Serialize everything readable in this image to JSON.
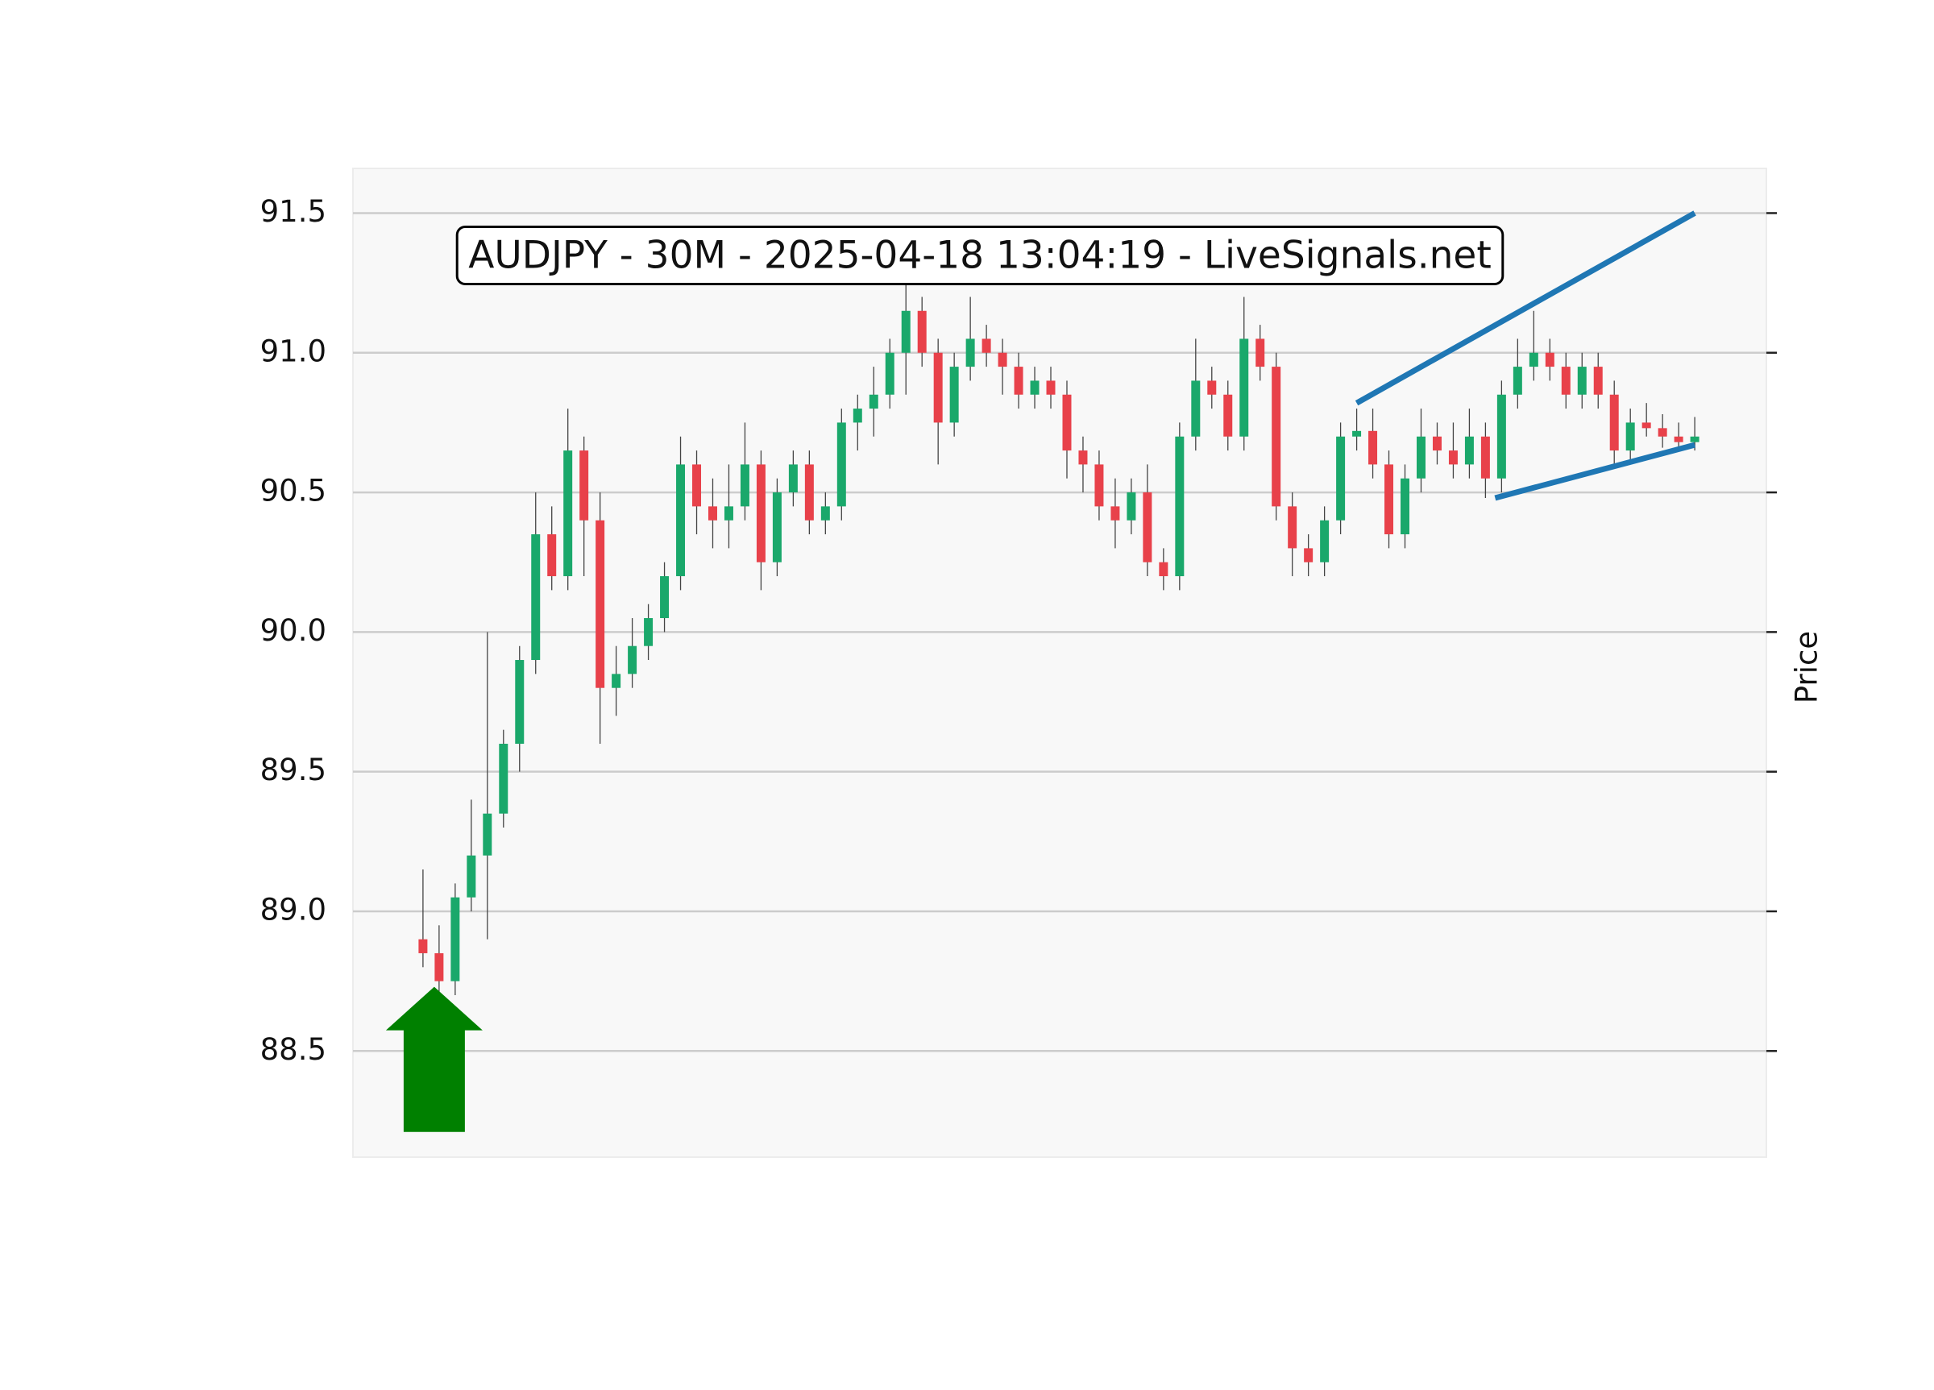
{
  "chart_data": {
    "type": "candlestick",
    "title": "AUDJPY - 30M - 2025-04-18 13:04:19 - LiveSignals.net",
    "ylabel": "Price",
    "ylim": [
      88.12,
      91.66
    ],
    "xlim": [
      -4.35,
      83.45
    ],
    "yticks": [
      88.5,
      {
        "value": 89,
        "label": "89.0"
      },
      89.5,
      {
        "value": 90,
        "label": "90.0"
      },
      90.5,
      {
        "value": 91,
        "label": "91.0"
      },
      91.5
    ],
    "grid": true,
    "up_color": "#1aa86b",
    "down_color": "#e8414a",
    "open": [
      88.9,
      88.85,
      88.75,
      89.05,
      89.2,
      89.35,
      89.6,
      89.9,
      90.35,
      90.2,
      90.65,
      90.4,
      89.8,
      89.85,
      89.95,
      90.05,
      90.2,
      90.6,
      90.45,
      90.4,
      90.45,
      90.6,
      90.25,
      90.5,
      90.6,
      90.4,
      90.45,
      90.75,
      90.8,
      90.85,
      91.0,
      91.15,
      91.0,
      90.75,
      90.95,
      91.05,
      91.0,
      90.95,
      90.85,
      90.9,
      90.85,
      90.65,
      90.6,
      90.45,
      90.4,
      90.5,
      90.25,
      90.2,
      90.7,
      90.9,
      90.85,
      90.7,
      91.05,
      90.95,
      90.45,
      90.3,
      90.25,
      90.4,
      90.7,
      90.72,
      90.6,
      90.35,
      90.55,
      90.7,
      90.65,
      90.6,
      90.7,
      90.55,
      90.85,
      90.95,
      91.0,
      90.95,
      90.85,
      90.95,
      90.85,
      90.65,
      90.75,
      90.73,
      90.7,
      90.68
    ],
    "high": [
      89.15,
      88.95,
      89.1,
      89.4,
      90.0,
      89.65,
      89.95,
      90.5,
      90.45,
      90.8,
      90.7,
      90.5,
      89.95,
      90.05,
      90.1,
      90.25,
      90.7,
      90.65,
      90.55,
      90.6,
      90.75,
      90.65,
      90.55,
      90.65,
      90.65,
      90.5,
      90.8,
      90.85,
      90.95,
      91.05,
      91.25,
      91.2,
      91.05,
      91.0,
      91.2,
      91.1,
      91.05,
      91.0,
      90.95,
      90.95,
      90.9,
      90.7,
      90.65,
      90.55,
      90.55,
      90.6,
      90.3,
      90.75,
      91.05,
      90.95,
      90.9,
      91.2,
      91.1,
      91.0,
      90.5,
      90.35,
      90.45,
      90.75,
      90.8,
      90.8,
      90.65,
      90.6,
      90.8,
      90.75,
      90.75,
      90.8,
      90.75,
      90.9,
      91.05,
      91.15,
      91.05,
      91.0,
      91.0,
      91.0,
      90.9,
      90.8,
      90.82,
      90.78,
      90.75,
      90.77
    ],
    "low": [
      88.8,
      88.7,
      88.7,
      89.0,
      88.9,
      89.3,
      89.5,
      89.85,
      90.15,
      90.15,
      90.2,
      89.6,
      89.7,
      89.8,
      89.9,
      90.0,
      90.15,
      90.35,
      90.3,
      90.3,
      90.4,
      90.15,
      90.2,
      90.45,
      90.35,
      90.35,
      90.4,
      90.65,
      90.7,
      90.8,
      90.85,
      90.95,
      90.6,
      90.7,
      90.9,
      90.95,
      90.85,
      90.8,
      90.8,
      90.8,
      90.55,
      90.5,
      90.4,
      90.3,
      90.35,
      90.2,
      90.15,
      90.15,
      90.65,
      90.8,
      90.65,
      90.65,
      90.9,
      90.4,
      90.2,
      90.2,
      90.2,
      90.35,
      90.65,
      90.55,
      90.3,
      90.3,
      90.5,
      90.6,
      90.55,
      90.55,
      90.48,
      90.5,
      90.8,
      90.9,
      90.9,
      90.8,
      90.8,
      90.8,
      90.6,
      90.6,
      90.7,
      90.66,
      90.65,
      90.65
    ],
    "close": [
      88.85,
      88.75,
      89.05,
      89.2,
      89.35,
      89.6,
      89.9,
      90.35,
      90.2,
      90.65,
      90.4,
      89.8,
      89.85,
      89.95,
      90.05,
      90.2,
      90.6,
      90.45,
      90.4,
      90.45,
      90.6,
      90.25,
      90.5,
      90.6,
      90.4,
      90.45,
      90.75,
      90.8,
      90.85,
      91.0,
      91.15,
      91.0,
      90.75,
      90.95,
      91.05,
      91.0,
      90.95,
      90.85,
      90.9,
      90.85,
      90.65,
      90.6,
      90.45,
      90.4,
      90.5,
      90.25,
      90.2,
      90.7,
      90.9,
      90.85,
      90.7,
      91.05,
      90.95,
      90.45,
      90.3,
      90.25,
      90.4,
      90.7,
      90.72,
      90.6,
      90.35,
      90.55,
      90.7,
      90.65,
      90.6,
      90.7,
      90.55,
      90.85,
      90.95,
      91.0,
      90.95,
      90.85,
      90.95,
      90.85,
      90.65,
      90.75,
      90.73,
      90.7,
      90.68,
      90.7
    ],
    "trend_color": "#1f77b4",
    "trend_lines": [
      {
        "x": [
          58,
          79
        ],
        "y": [
          90.82,
          91.5
        ]
      },
      {
        "x": [
          66.6,
          79
        ],
        "y": [
          90.48,
          90.67
        ]
      }
    ],
    "arrow": {
      "x": 0.7,
      "y": [
        88.21,
        88.73
      ],
      "color": "#008000"
    }
  }
}
